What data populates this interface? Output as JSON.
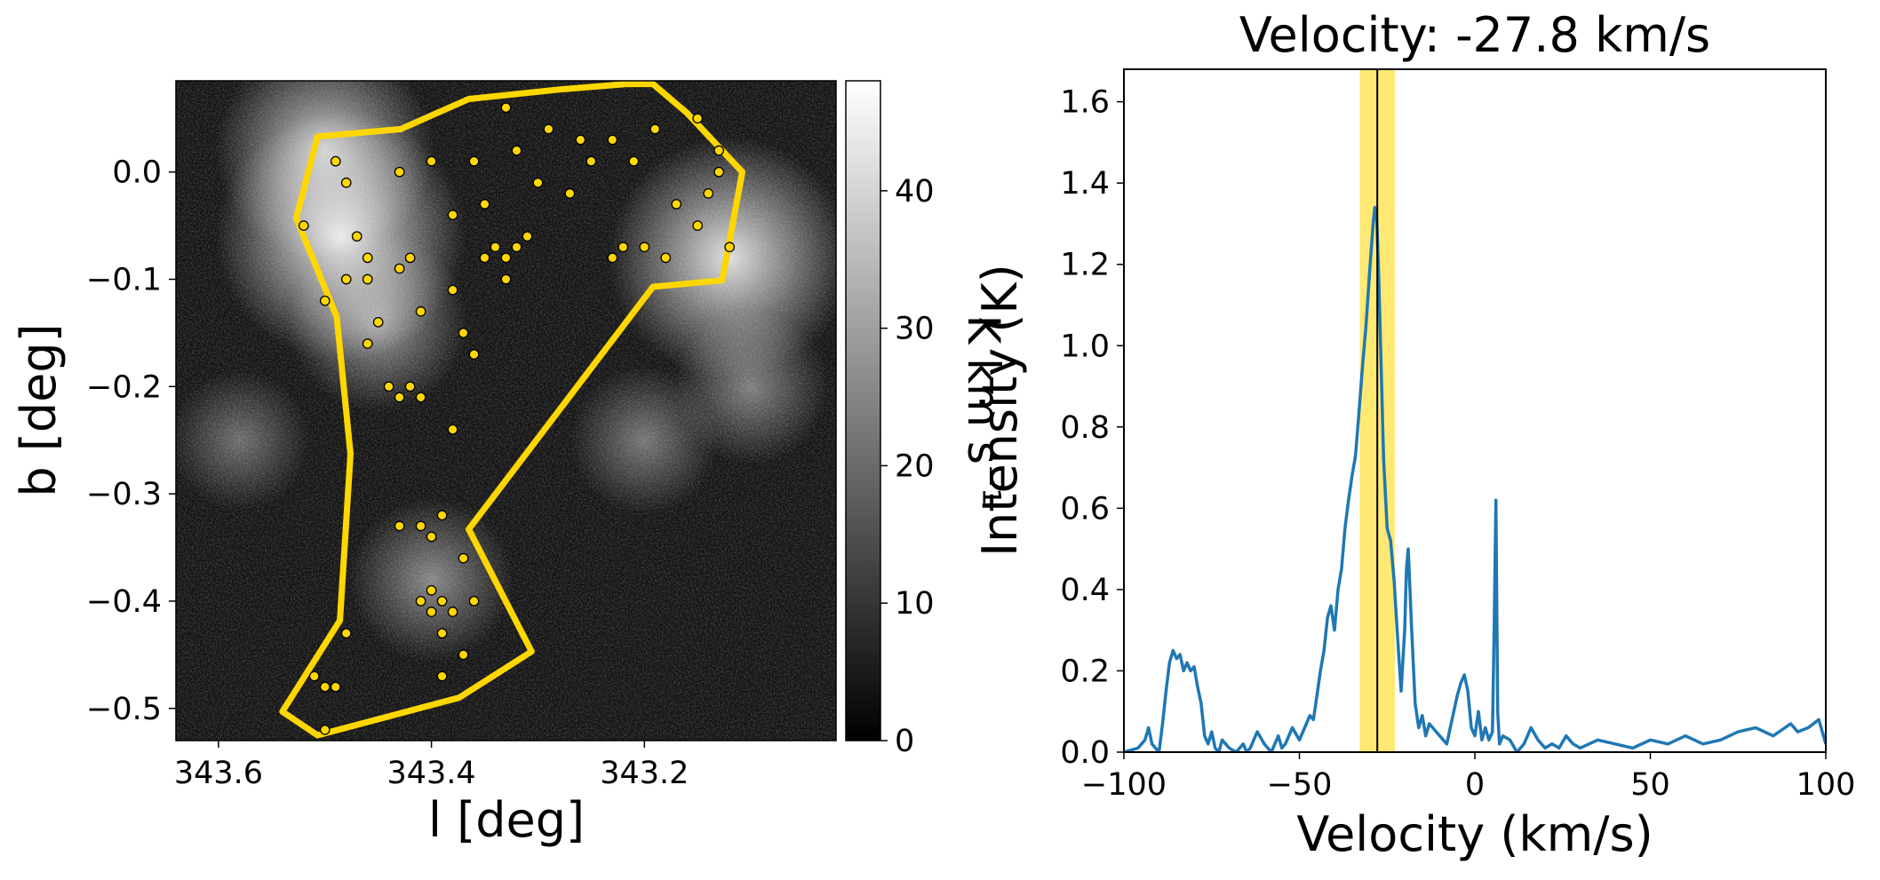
{
  "chart_data": [
    {
      "type": "heatmap",
      "xlabel": "l [deg]",
      "ylabel": "b [deg]",
      "x_axis_reversed": true,
      "xlim": [
        343.64,
        343.02
      ],
      "ylim": [
        -0.53,
        0.085
      ],
      "xticks": [
        343.6,
        343.4,
        343.2
      ],
      "xtick_labels": [
        "343.6",
        "343.4",
        "343.2"
      ],
      "yticks": [
        0.0,
        -0.1,
        -0.2,
        -0.3,
        -0.4,
        -0.5
      ],
      "ytick_labels": [
        "0.0",
        "−0.1",
        "−0.2",
        "−0.3",
        "−0.4",
        "−0.5"
      ],
      "colormap": "gray",
      "colorbar": {
        "label": "K km s⁻¹",
        "range": [
          0,
          48
        ],
        "ticks": [
          0,
          10,
          20,
          30,
          40
        ],
        "tick_labels": [
          "0",
          "10",
          "20",
          "30",
          "40"
        ]
      },
      "emission_features": [
        {
          "l": 343.485,
          "b": -0.06,
          "level": 48
        },
        {
          "l": 343.5,
          "b": 0.02,
          "level": 40
        },
        {
          "l": 343.45,
          "b": -0.14,
          "level": 30
        },
        {
          "l": 343.4,
          "b": -0.38,
          "level": 26
        },
        {
          "l": 343.12,
          "b": -0.08,
          "level": 46
        },
        {
          "l": 343.1,
          "b": -0.2,
          "level": 24
        },
        {
          "l": 343.2,
          "b": -0.25,
          "level": 22
        },
        {
          "l": 343.58,
          "b": -0.25,
          "level": 20
        }
      ],
      "region_polygon": {
        "color": "#ffd700",
        "vertices_l_b": [
          [
            343.507,
            0.033
          ],
          [
            343.429,
            0.04
          ],
          [
            343.365,
            0.068
          ],
          [
            343.279,
            0.077
          ],
          [
            343.217,
            0.082
          ],
          [
            343.192,
            0.082
          ],
          [
            343.16,
            0.055
          ],
          [
            343.108,
            0.0
          ],
          [
            343.127,
            -0.101
          ],
          [
            343.192,
            -0.107
          ],
          [
            343.365,
            -0.333
          ],
          [
            343.306,
            -0.447
          ],
          [
            343.374,
            -0.49
          ],
          [
            343.507,
            -0.525
          ],
          [
            343.54,
            -0.503
          ],
          [
            343.486,
            -0.418
          ],
          [
            343.476,
            -0.263
          ],
          [
            343.489,
            -0.135
          ],
          [
            343.527,
            -0.043
          ],
          [
            343.507,
            0.033
          ]
        ]
      },
      "sources": {
        "color": "#ffd700",
        "points_l_b": [
          [
            343.49,
            0.01
          ],
          [
            343.48,
            -0.01
          ],
          [
            343.47,
            -0.06
          ],
          [
            343.46,
            -0.08
          ],
          [
            343.48,
            -0.1
          ],
          [
            343.43,
            -0.09
          ],
          [
            343.45,
            -0.14
          ],
          [
            343.46,
            -0.16
          ],
          [
            343.44,
            -0.2
          ],
          [
            343.43,
            -0.21
          ],
          [
            343.42,
            -0.2
          ],
          [
            343.41,
            -0.21
          ],
          [
            343.43,
            -0.33
          ],
          [
            343.41,
            -0.33
          ],
          [
            343.4,
            -0.34
          ],
          [
            343.39,
            -0.32
          ],
          [
            343.4,
            -0.39
          ],
          [
            343.39,
            -0.4
          ],
          [
            343.38,
            -0.41
          ],
          [
            343.4,
            -0.41
          ],
          [
            343.41,
            -0.4
          ],
          [
            343.39,
            -0.43
          ],
          [
            343.37,
            -0.36
          ],
          [
            343.36,
            -0.4
          ],
          [
            343.39,
            -0.47
          ],
          [
            343.37,
            -0.45
          ],
          [
            343.49,
            -0.48
          ],
          [
            343.5,
            -0.48
          ],
          [
            343.51,
            -0.47
          ],
          [
            343.5,
            -0.52
          ],
          [
            343.48,
            -0.43
          ],
          [
            343.38,
            -0.24
          ],
          [
            343.36,
            -0.17
          ],
          [
            343.37,
            -0.15
          ],
          [
            343.35,
            -0.08
          ],
          [
            343.34,
            -0.07
          ],
          [
            343.33,
            -0.08
          ],
          [
            343.32,
            -0.07
          ],
          [
            343.31,
            -0.06
          ],
          [
            343.33,
            -0.1
          ],
          [
            343.35,
            -0.03
          ],
          [
            343.38,
            -0.04
          ],
          [
            343.36,
            0.01
          ],
          [
            343.32,
            0.02
          ],
          [
            343.3,
            -0.01
          ],
          [
            343.27,
            -0.02
          ],
          [
            343.25,
            0.01
          ],
          [
            343.23,
            0.03
          ],
          [
            343.21,
            0.01
          ],
          [
            343.22,
            -0.07
          ],
          [
            343.23,
            -0.08
          ],
          [
            343.2,
            -0.07
          ],
          [
            343.18,
            -0.08
          ],
          [
            343.17,
            -0.03
          ],
          [
            343.14,
            -0.02
          ],
          [
            343.13,
            0.0
          ],
          [
            343.12,
            -0.07
          ],
          [
            343.15,
            -0.05
          ],
          [
            343.15,
            0.05
          ],
          [
            343.13,
            0.02
          ],
          [
            343.19,
            0.04
          ],
          [
            343.26,
            0.03
          ],
          [
            343.43,
            0.0
          ],
          [
            343.42,
            -0.08
          ],
          [
            343.41,
            -0.13
          ],
          [
            343.38,
            -0.11
          ],
          [
            343.52,
            -0.05
          ],
          [
            343.5,
            -0.12
          ],
          [
            343.46,
            -0.1
          ],
          [
            343.4,
            0.01
          ],
          [
            343.33,
            0.06
          ],
          [
            343.29,
            0.04
          ]
        ]
      }
    },
    {
      "type": "line",
      "title": "Velocity: -27.8 km/s",
      "xlabel": "Velocity (km/s)",
      "ylabel": "Intensity (K)",
      "xlim": [
        -100,
        100
      ],
      "ylim": [
        0,
        1.68
      ],
      "xticks": [
        -100,
        -50,
        0,
        50,
        100
      ],
      "xtick_labels": [
        "−100",
        "−50",
        "0",
        "50",
        "100"
      ],
      "yticks": [
        0.0,
        0.2,
        0.4,
        0.6,
        0.8,
        1.0,
        1.2,
        1.4,
        1.6
      ],
      "ytick_labels": [
        "0.0",
        "0.2",
        "0.4",
        "0.6",
        "0.8",
        "1.0",
        "1.2",
        "1.4",
        "1.6"
      ],
      "selected_velocity": -27.8,
      "highlight_band": [
        -32.8,
        -22.8
      ],
      "line_color": "#1f77b4",
      "band_color": "#ffd700",
      "series": [
        {
          "x": [
            -100,
            -96,
            -94,
            -93,
            -92,
            -90,
            -89,
            -88,
            -87,
            -86,
            -85,
            -84,
            -83,
            -82,
            -81,
            -80,
            -79,
            -78,
            -77,
            -76,
            -75,
            -74,
            -73,
            -72,
            -71,
            -70,
            -68,
            -66,
            -65,
            -64,
            -62,
            -60,
            -58,
            -56,
            -55,
            -54,
            -52,
            -50,
            -48,
            -47,
            -46,
            -45,
            -44,
            -43,
            -42,
            -41,
            -40,
            -39,
            -38,
            -37,
            -36,
            -35,
            -34,
            -33,
            -32,
            -31,
            -30,
            -29,
            -28.5,
            -28,
            -27.5,
            -27,
            -26,
            -25,
            -24,
            -23,
            -22,
            -21,
            -20,
            -19.5,
            -19,
            -18,
            -17,
            -16,
            -15,
            -14,
            -13,
            -12,
            -11,
            -10,
            -9,
            -8,
            -7,
            -6,
            -5,
            -4,
            -3,
            -2,
            -1,
            0,
            1,
            2,
            3,
            4,
            5,
            5.5,
            6,
            6.5,
            7,
            8,
            10,
            12,
            14,
            16,
            18,
            20,
            22,
            24,
            26,
            28,
            30,
            35,
            40,
            45,
            50,
            55,
            60,
            65,
            70,
            75,
            80,
            85,
            90,
            92,
            95,
            98,
            100
          ],
          "y": [
            0.0,
            0.01,
            0.03,
            0.06,
            0.02,
            0.0,
            0.07,
            0.15,
            0.22,
            0.25,
            0.23,
            0.24,
            0.2,
            0.22,
            0.2,
            0.21,
            0.16,
            0.12,
            0.04,
            0.02,
            0.05,
            0.01,
            0.0,
            0.03,
            0.02,
            0.01,
            0.0,
            0.02,
            0.0,
            0.01,
            0.05,
            0.02,
            0.0,
            0.04,
            0.01,
            0.02,
            0.06,
            0.03,
            0.07,
            0.09,
            0.08,
            0.14,
            0.2,
            0.25,
            0.33,
            0.36,
            0.3,
            0.4,
            0.45,
            0.55,
            0.62,
            0.68,
            0.73,
            0.84,
            0.95,
            1.05,
            1.18,
            1.3,
            1.34,
            1.32,
            1.2,
            1.05,
            0.72,
            0.55,
            0.52,
            0.42,
            0.28,
            0.15,
            0.3,
            0.45,
            0.5,
            0.3,
            0.12,
            0.06,
            0.09,
            0.04,
            0.07,
            0.06,
            0.05,
            0.04,
            0.03,
            0.02,
            0.06,
            0.1,
            0.14,
            0.17,
            0.19,
            0.15,
            0.06,
            0.04,
            0.1,
            0.03,
            0.06,
            0.03,
            0.05,
            0.3,
            0.62,
            0.1,
            0.02,
            0.04,
            0.03,
            0.0,
            0.02,
            0.06,
            0.03,
            0.01,
            0.02,
            0.01,
            0.04,
            0.02,
            0.01,
            0.03,
            0.02,
            0.01,
            0.03,
            0.02,
            0.04,
            0.02,
            0.03,
            0.05,
            0.06,
            0.04,
            0.07,
            0.05,
            0.06,
            0.08,
            0.02
          ]
        }
      ]
    }
  ]
}
